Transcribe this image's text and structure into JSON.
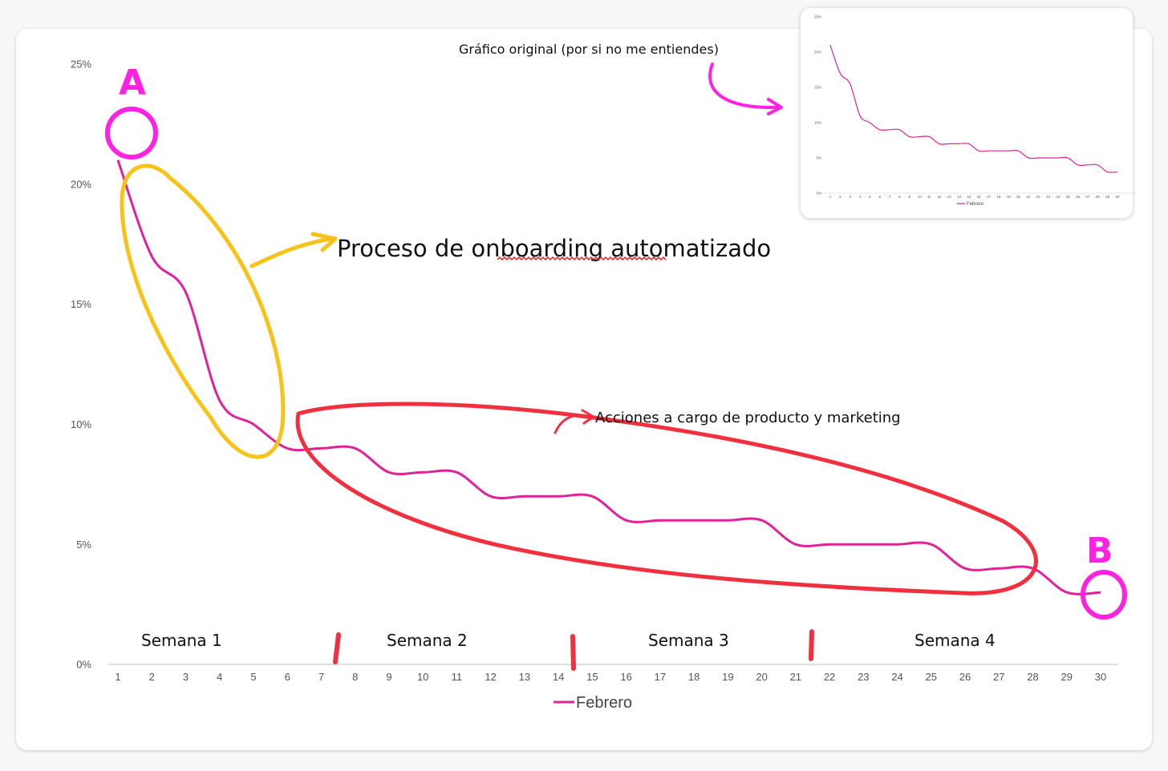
{
  "chart_data": {
    "type": "line",
    "x": [
      1,
      2,
      3,
      4,
      5,
      6,
      7,
      8,
      9,
      10,
      11,
      12,
      13,
      14,
      15,
      16,
      17,
      18,
      19,
      20,
      21,
      22,
      23,
      24,
      25,
      26,
      27,
      28,
      29,
      30
    ],
    "series": [
      {
        "name": "Febrero",
        "values": [
          21,
          17,
          15.5,
          11,
          10,
          9,
          9,
          9,
          8,
          8,
          8,
          7,
          7,
          7,
          7,
          6,
          6,
          6,
          6,
          6,
          5,
          5,
          5,
          5,
          5,
          4,
          4,
          4,
          3,
          3
        ]
      }
    ],
    "y_ticks": [
      "0%",
      "5%",
      "10%",
      "15%",
      "20%",
      "25%"
    ],
    "ylim": [
      0,
      25
    ],
    "xlim": [
      1,
      30
    ],
    "grid": false,
    "legend": "bottom",
    "colors": {
      "line": "#e0219a",
      "yellow": "#f7c31b",
      "red": "#f0303f",
      "magenta": "#ff22e0"
    }
  },
  "annotations": {
    "point_a": "A",
    "point_b": "B",
    "onboarding": "Proceso de onboarding automatizado",
    "actions": "Acciones a cargo de producto y marketing",
    "inset_caption": "Gráfico original (por si no me entiendes)",
    "weeks": [
      "Semana 1",
      "Semana 2",
      "Semana 3",
      "Semana 4"
    ]
  }
}
